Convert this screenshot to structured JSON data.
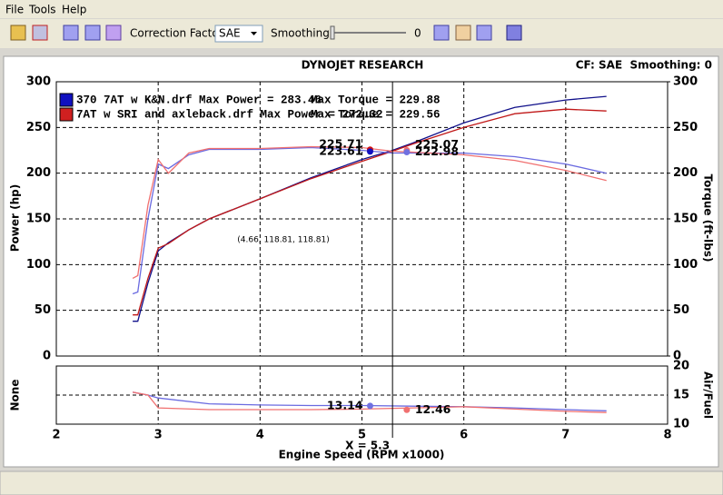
{
  "menu": [
    "File",
    "Tools",
    "Help"
  ],
  "toolbar": {
    "correction_label": "Correction Factor:",
    "correction_value": "SAE",
    "smoothing_label": "Smoothing:",
    "smoothing_value": 0
  },
  "chart_data": {
    "type": "line",
    "title": "DYNOJET RESEARCH",
    "header_right": "CF: SAE  Smoothing: 0",
    "xlabel": "Engine Speed (RPM x1000)",
    "ylabel": "Power (hp)",
    "y2label": "Torque (ft-lbs)",
    "xlim": [
      2,
      8
    ],
    "xticks": [
      2,
      3,
      4,
      5,
      6,
      7,
      8
    ],
    "ylim": [
      0,
      300
    ],
    "yticks": [
      0,
      50,
      100,
      150,
      200,
      250,
      300
    ],
    "y2lim": [
      0,
      300
    ],
    "y2ticks": [
      0,
      50,
      100,
      150,
      200,
      250,
      300
    ],
    "grid": true,
    "x": [
      2.75,
      2.8,
      2.9,
      3.0,
      3.1,
      3.3,
      3.5,
      4.0,
      4.5,
      5.0,
      5.3,
      5.5,
      6.0,
      6.5,
      7.0,
      7.4
    ],
    "series": [
      {
        "color": "#10108a",
        "values": [
          38,
          38,
          80,
          115,
          124,
          138,
          150,
          172,
          195,
          215,
          225,
          233,
          255,
          272,
          280,
          284
        ]
      },
      {
        "color": "#c01818",
        "values": [
          45,
          45,
          85,
          118,
          123,
          138,
          150,
          172,
          194,
          213,
          224,
          232,
          250,
          265,
          270,
          268
        ]
      },
      {
        "color": "#6a6ae0",
        "axis": "y2",
        "values": [
          68,
          70,
          150,
          210,
          205,
          220,
          226,
          226,
          228,
          225,
          222,
          222,
          222,
          218,
          210,
          200
        ]
      },
      {
        "color": "#f07070",
        "axis": "y2",
        "values": [
          85,
          88,
          165,
          215,
          200,
          222,
          227,
          227,
          229,
          228,
          224,
          223,
          220,
          214,
          203,
          192
        ]
      }
    ],
    "legend": [
      {
        "text": "370 7AT w K&N.drf Max Power = 283.46",
        "text2": "Max Torque = 229.88",
        "color": "#1010c0"
      },
      {
        "text": "7AT w SRI and axleback.drf Max Power = 272.32",
        "text2": "Max Torque = 229.56",
        "color": "#d02020"
      }
    ],
    "cursor": {
      "x": 5.3,
      "label": "X = 5.3"
    },
    "readouts": [
      {
        "x": 5.08,
        "value": 225.71,
        "color": "#d01010",
        "side": "left"
      },
      {
        "x": 5.08,
        "value": 223.61,
        "color": "#1010c0",
        "side": "left"
      },
      {
        "x": 5.44,
        "value": 225.07,
        "color": "#f07070",
        "side": "right"
      },
      {
        "x": 5.44,
        "value": 222.98,
        "color": "#7070e0",
        "side": "right"
      }
    ],
    "annotation": "(4.66, 118.81, 118.81)",
    "lower": {
      "ylabel": "None",
      "y2label": "Air/Fuel",
      "y2lim": [
        10,
        20
      ],
      "y2ticks": [
        10,
        15,
        20
      ],
      "x": [
        2.75,
        2.9,
        3.0,
        3.5,
        4.0,
        4.5,
        5.0,
        5.5,
        6.0,
        6.5,
        7.0,
        7.4
      ],
      "series": [
        {
          "color": "#6a6ae0",
          "values": [
            15.5,
            15.0,
            14.5,
            13.5,
            13.3,
            13.2,
            13.2,
            13.1,
            13.0,
            12.8,
            12.5,
            12.3
          ]
        },
        {
          "color": "#f07070",
          "values": [
            15.5,
            15.0,
            12.8,
            12.5,
            12.5,
            12.5,
            12.6,
            12.8,
            13.0,
            12.6,
            12.2,
            12.0
          ]
        }
      ],
      "readouts": [
        {
          "x": 5.08,
          "value": 13.14,
          "color": "#7070e0",
          "side": "left"
        },
        {
          "x": 5.44,
          "value": 12.46,
          "color": "#f07070",
          "side": "right"
        }
      ]
    }
  }
}
